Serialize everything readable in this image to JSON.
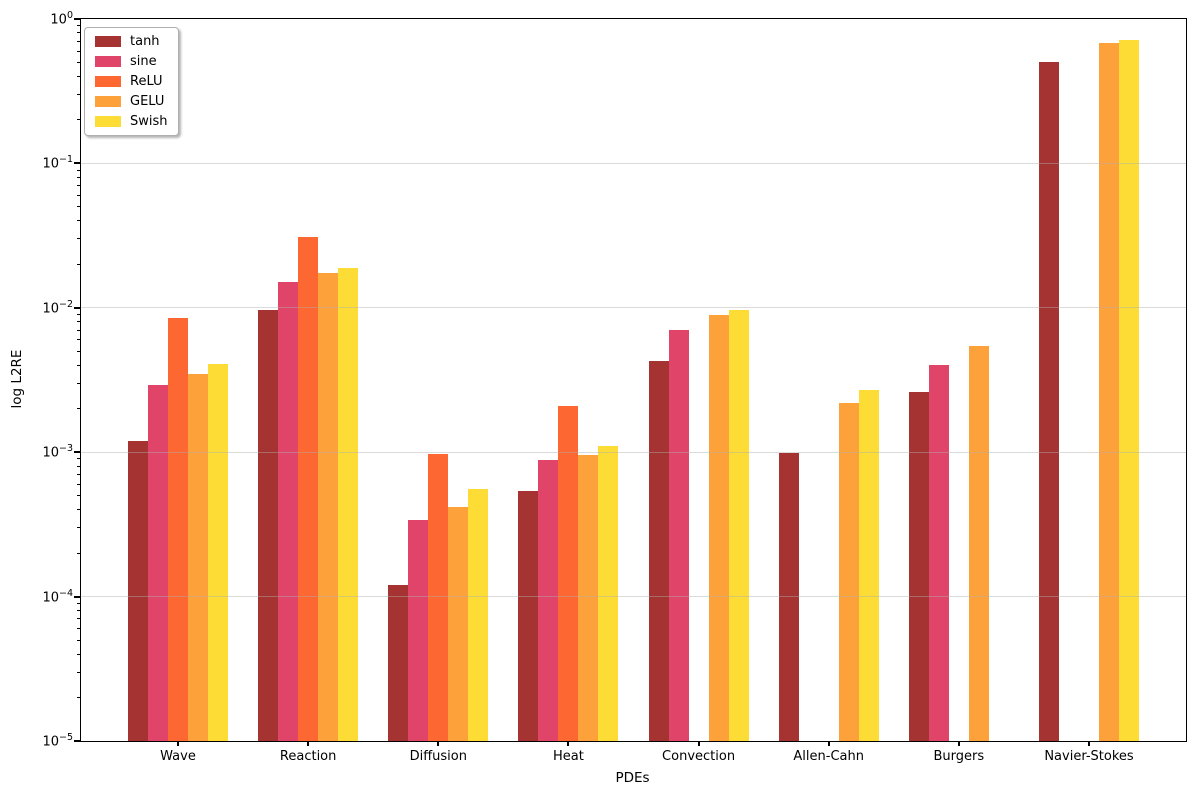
{
  "chart_data": {
    "type": "bar",
    "title": "",
    "xlabel": "PDEs",
    "ylabel": "log L2RE",
    "yscale": "log",
    "ylim": [
      1e-05,
      1
    ],
    "grid": "horizontal-major",
    "legend_position": "upper left",
    "categories": [
      "Wave",
      "Reaction",
      "Diffusion",
      "Heat",
      "Convection",
      "Allen-Cahn",
      "Burgers",
      "Navier-Stokes"
    ],
    "series": [
      {
        "name": "tanh",
        "color": "#A43331",
        "values": [
          0.0012,
          0.0097,
          0.00012,
          0.00054,
          0.0043,
          0.00099,
          0.0026,
          0.5
        ]
      },
      {
        "name": "sine",
        "color": "#E04468",
        "values": [
          0.0029,
          0.0152,
          0.00034,
          0.00088,
          0.007,
          null,
          0.004,
          null
        ]
      },
      {
        "name": "ReLU",
        "color": "#FC6732",
        "values": [
          0.0085,
          0.031,
          0.00097,
          0.0021,
          null,
          null,
          null,
          null
        ]
      },
      {
        "name": "GELU",
        "color": "#FDA23A",
        "values": [
          0.0035,
          0.0175,
          0.00042,
          0.00095,
          0.0089,
          0.0022,
          0.0054,
          0.68
        ]
      },
      {
        "name": "Swish",
        "color": "#FDDD35",
        "values": [
          0.0041,
          0.019,
          0.00056,
          0.0011,
          0.0096,
          0.0027,
          null,
          0.72
        ]
      }
    ],
    "y_ticks": [
      {
        "base": "10",
        "exp": "0"
      },
      {
        "base": "10",
        "exp": "−1"
      },
      {
        "base": "10",
        "exp": "−2"
      },
      {
        "base": "10",
        "exp": "−3"
      },
      {
        "base": "10",
        "exp": "−4"
      },
      {
        "base": "10",
        "exp": "−5"
      }
    ]
  }
}
